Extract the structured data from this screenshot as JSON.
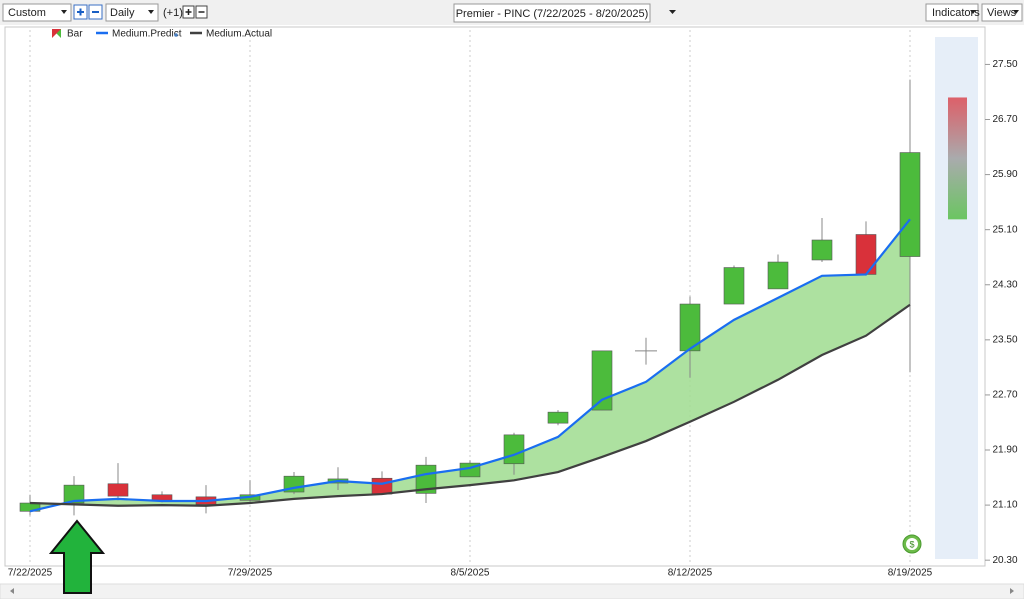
{
  "toolbar": {
    "interval": "Custom",
    "period": "Daily",
    "offset": "(+1)",
    "title": "Premier - PINC (7/22/2025 - 8/20/2025)",
    "indicators": "Indicators",
    "views": "Views"
  },
  "chart_data": {
    "type": "candlestick",
    "candle_name": "Bar",
    "up_color": "#4cbb3c",
    "down_color": "#d9313a",
    "categories": [
      "7/22/2025",
      null,
      null,
      null,
      null,
      "7/29/2025",
      null,
      null,
      null,
      null,
      "8/5/2025",
      null,
      null,
      null,
      null,
      "8/12/2025",
      null,
      null,
      null,
      null,
      "8/19/2025"
    ],
    "open": [
      21.01,
      21.13,
      21.41,
      21.25,
      21.22,
      21.17,
      21.29,
      21.42,
      21.49,
      21.27,
      21.51,
      21.7,
      22.29,
      22.48,
      23.34,
      23.34,
      24.02,
      24.24,
      24.66,
      25.03,
      24.71
    ],
    "close": [
      21.13,
      21.39,
      21.23,
      21.17,
      21.11,
      21.25,
      21.52,
      21.48,
      21.26,
      21.68,
      21.71,
      22.12,
      22.45,
      23.34,
      23.34,
      24.02,
      24.55,
      24.63,
      24.95,
      24.45,
      26.22
    ],
    "high": [
      21.25,
      21.52,
      21.71,
      21.3,
      21.39,
      21.46,
      21.58,
      21.65,
      21.59,
      21.8,
      21.75,
      22.15,
      22.48,
      23.34,
      23.53,
      24.13,
      24.58,
      24.74,
      25.27,
      25.22,
      27.28
    ],
    "low": [
      20.95,
      20.95,
      21.17,
      21.14,
      20.98,
      21.14,
      21.26,
      21.32,
      21.25,
      21.13,
      21.52,
      21.54,
      22.26,
      22.48,
      23.14,
      22.95,
      24.02,
      24.24,
      24.63,
      24.43,
      23.03
    ],
    "forecast": {
      "high": 27.02,
      "low": 25.25
    },
    "series": [
      {
        "name": "Medium.Predict",
        "color": "#1a6ef0",
        "values": [
          21.01,
          21.16,
          21.19,
          21.16,
          21.16,
          21.22,
          21.35,
          21.45,
          21.41,
          21.55,
          21.64,
          21.83,
          22.09,
          22.63,
          22.89,
          23.37,
          23.79,
          24.11,
          24.43,
          24.45,
          25.25
        ]
      },
      {
        "name": "Medium.Actual",
        "color": "#404040",
        "values": [
          21.13,
          21.11,
          21.09,
          21.1,
          21.09,
          21.13,
          21.19,
          21.23,
          21.26,
          21.33,
          21.39,
          21.46,
          21.58,
          21.8,
          22.03,
          22.31,
          22.6,
          22.92,
          23.28,
          23.56,
          24.01
        ]
      }
    ],
    "fill_color": "#9fdc8f",
    "ylim": [
      20.23,
      28.0
    ],
    "yticks": [
      {
        "value": 20.3,
        "label": "20.30"
      },
      {
        "value": 21.1,
        "label": "21.10"
      },
      {
        "value": 21.9,
        "label": "21.90"
      },
      {
        "value": 22.7,
        "label": "22.70"
      },
      {
        "value": 23.5,
        "label": "23.50"
      },
      {
        "value": 24.3,
        "label": "24.30"
      },
      {
        "value": 25.1,
        "label": "25.10"
      },
      {
        "value": 25.9,
        "label": "25.90"
      },
      {
        "value": 26.7,
        "label": "26.70"
      },
      {
        "value": 27.5,
        "label": "27.50"
      }
    ],
    "grid": true,
    "badge": "$"
  }
}
